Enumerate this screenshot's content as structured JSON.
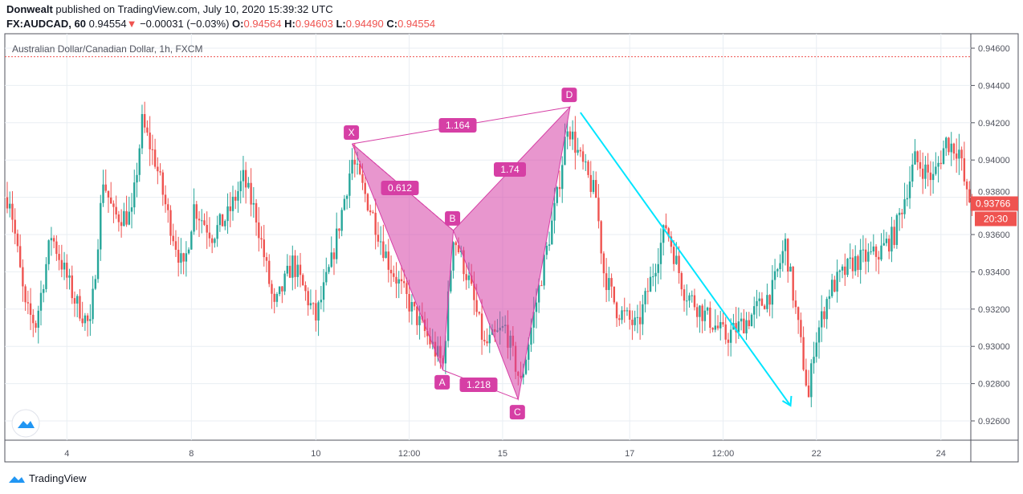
{
  "header": {
    "author": "Donwealt",
    "published": "published on TradingView.com, July 10, 2020 15:39:32 UTC",
    "symbol": "FX:AUDCAD, 60",
    "last": "0.94554",
    "arrow": "▼",
    "change": "−0.00031 (−0.03%)",
    "o_label": "O:",
    "o": "0.94564",
    "h_label": "H:",
    "h": "0.94603",
    "l_label": "L:",
    "l": "0.94490",
    "c_label": "C:",
    "c": "0.94554"
  },
  "footer": {
    "brand": "TradingView"
  },
  "chart_data": {
    "type": "candlestick",
    "title": "Australian Dollar/Canadian Dollar, 1h, FXCM",
    "ylim": [
      0.9256,
      0.9468
    ],
    "y_ticks": [
      "0.94600",
      "0.94400",
      "0.94200",
      "0.94000",
      "0.93800",
      "0.93600",
      "0.93400",
      "0.93200",
      "0.93000",
      "0.92800",
      "0.92600"
    ],
    "x_ticks": [
      {
        "bar": 23,
        "label": "4"
      },
      {
        "bar": 71,
        "label": "8"
      },
      {
        "bar": 119,
        "label": "10"
      },
      {
        "bar": 155,
        "label": "12:00"
      },
      {
        "bar": 191,
        "label": "15"
      },
      {
        "bar": 240,
        "label": "17"
      },
      {
        "bar": 276,
        "label": "12:00"
      },
      {
        "bar": 312,
        "label": "22"
      },
      {
        "bar": 360,
        "label": "24"
      }
    ],
    "bars": 373,
    "price_path": [
      [
        0,
        0.938
      ],
      [
        1,
        0.938
      ],
      [
        7,
        0.932
      ],
      [
        11,
        0.9312
      ],
      [
        17,
        0.936
      ],
      [
        26,
        0.9325
      ],
      [
        32,
        0.931
      ],
      [
        37,
        0.939
      ],
      [
        41,
        0.937
      ],
      [
        48,
        0.937
      ],
      [
        52,
        0.942
      ],
      [
        57,
        0.94
      ],
      [
        62,
        0.937
      ],
      [
        68,
        0.934
      ],
      [
        72,
        0.9375
      ],
      [
        79,
        0.936
      ],
      [
        85,
        0.937
      ],
      [
        91,
        0.939
      ],
      [
        96,
        0.937
      ],
      [
        103,
        0.932
      ],
      [
        110,
        0.9345
      ],
      [
        119,
        0.9315
      ],
      [
        125,
        0.9345
      ],
      [
        133,
        0.94
      ],
      [
        141,
        0.937
      ],
      [
        147,
        0.9345
      ],
      [
        156,
        0.932
      ],
      [
        168,
        0.929
      ],
      [
        172,
        0.936
      ],
      [
        178,
        0.9335
      ],
      [
        184,
        0.93
      ],
      [
        192,
        0.931
      ],
      [
        198,
        0.928
      ],
      [
        202,
        0.931
      ],
      [
        212,
        0.938
      ],
      [
        216,
        0.942
      ],
      [
        221,
        0.94
      ],
      [
        227,
        0.938
      ],
      [
        230,
        0.934
      ],
      [
        235,
        0.932
      ],
      [
        243,
        0.931
      ],
      [
        249,
        0.934
      ],
      [
        254,
        0.9365
      ],
      [
        261,
        0.933
      ],
      [
        267,
        0.932
      ],
      [
        277,
        0.9305
      ],
      [
        286,
        0.9315
      ],
      [
        295,
        0.933
      ],
      [
        300,
        0.9355
      ],
      [
        305,
        0.931
      ],
      [
        309,
        0.9272
      ],
      [
        311,
        0.93
      ],
      [
        317,
        0.933
      ],
      [
        326,
        0.9345
      ],
      [
        336,
        0.935
      ],
      [
        342,
        0.936
      ],
      [
        350,
        0.94
      ],
      [
        357,
        0.939
      ],
      [
        362,
        0.941
      ],
      [
        367,
        0.9405
      ],
      [
        370,
        0.938
      ],
      [
        372,
        0.93766
      ]
    ],
    "last_price": "0.93766",
    "countdown": "20:30",
    "high_line": 0.94554,
    "pattern": {
      "points": [
        {
          "label": "X",
          "bar": 133,
          "price": 0.94087
        },
        {
          "label": "A",
          "bar": 168,
          "price": 0.92872
        },
        {
          "label": "B",
          "bar": 172,
          "price": 0.93622
        },
        {
          "label": "C",
          "bar": 197,
          "price": 0.92716
        },
        {
          "label": "D",
          "bar": 217,
          "price": 0.94285
        }
      ],
      "ratios": {
        "XB": "0.612",
        "AC": "1.218",
        "BD": "1.74",
        "XD": "1.164"
      }
    },
    "arrow": {
      "from": [
        221,
        0.94255
      ],
      "to": [
        302,
        0.92682
      ],
      "color": "#00e5ff"
    },
    "colors": {
      "up": "#26a69a",
      "down": "#ef5350",
      "pattern": "#d63fa5"
    }
  }
}
